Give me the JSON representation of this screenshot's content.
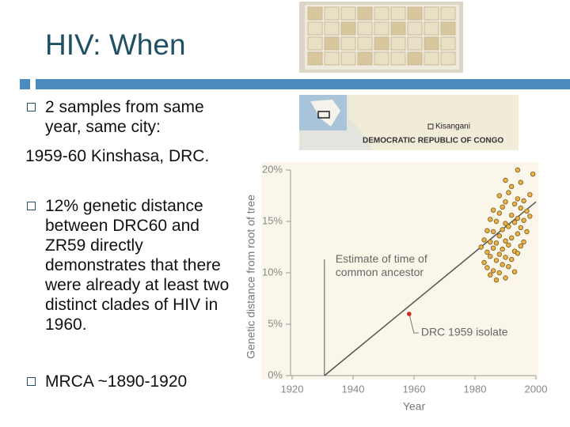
{
  "title": "HIV: When",
  "bullets": [
    {
      "lines": [
        "2 samples from same year, same city:",
        "1959-60 Kinshasa, DRC."
      ]
    },
    {
      "lines": [
        "12% genetic distance between DRC60 and ZR59 directly demonstrates that there were already at least two distinct clades of HIV in 1960."
      ]
    },
    {
      "lines": [
        "MRCA ~1890-1920"
      ]
    }
  ],
  "map": {
    "country": "DEMOCRATIC REPUBLIC OF CONGO",
    "city": "Kisangani"
  },
  "chart_data": {
    "type": "scatter",
    "xlabel": "Year",
    "ylabel": "Genetic distance from root of tree",
    "xlim": [
      1920,
      2000
    ],
    "ylim": [
      0,
      20
    ],
    "xticks": [
      1920,
      1940,
      1960,
      1980,
      2000
    ],
    "yticks": [
      {
        "value": 0,
        "label": "0%"
      },
      {
        "value": 5,
        "label": "5%"
      },
      {
        "value": 10,
        "label": "10%"
      },
      {
        "value": 15,
        "label": "15%"
      },
      {
        "value": 20,
        "label": "20%"
      }
    ],
    "color": "#e8b24a",
    "x": [
      1982,
      1983,
      1983,
      1984,
      1984,
      1984,
      1985,
      1985,
      1985,
      1985,
      1986,
      1986,
      1986,
      1986,
      1987,
      1987,
      1987,
      1987,
      1988,
      1988,
      1988,
      1988,
      1988,
      1989,
      1989,
      1989,
      1989,
      1990,
      1990,
      1990,
      1990,
      1990,
      1990,
      1991,
      1991,
      1991,
      1991,
      1992,
      1992,
      1992,
      1992,
      1993,
      1993,
      1993,
      1993,
      1994,
      1994,
      1994,
      1994,
      1994,
      1995,
      1995,
      1995,
      1995,
      1996,
      1996,
      1996,
      1997,
      1997,
      1998,
      1998,
      1999
    ],
    "values": [
      12.5,
      11.0,
      13.2,
      10.5,
      12.0,
      14.1,
      9.8,
      11.6,
      13.0,
      15.2,
      10.2,
      12.4,
      14.0,
      16.1,
      9.3,
      11.2,
      12.9,
      15.0,
      10.0,
      11.8,
      13.6,
      15.8,
      17.5,
      10.8,
      12.3,
      14.2,
      16.4,
      9.5,
      11.5,
      13.1,
      14.8,
      16.9,
      19.0,
      10.6,
      12.7,
      14.5,
      17.8,
      11.3,
      13.4,
      15.6,
      18.4,
      10.1,
      12.1,
      14.9,
      16.7,
      11.9,
      13.8,
      15.3,
      17.2,
      20.0,
      12.6,
      14.4,
      16.3,
      18.8,
      13.0,
      15.1,
      17.0,
      14.0,
      16.0,
      15.5,
      17.6,
      19.6
    ],
    "trend_line": {
      "x": [
        1930.6,
        2000
      ],
      "values": [
        0,
        16.9
      ]
    },
    "ancestor_line": {
      "x": [
        1930.6,
        1930.6
      ],
      "values": [
        0,
        11.3
      ],
      "label": [
        "Estimate of time of",
        "common ancestor"
      ]
    },
    "highlight": {
      "x": 1958.4,
      "value": 6.0,
      "color": "#cc2a22",
      "label": "DRC 1959 isolate"
    }
  }
}
